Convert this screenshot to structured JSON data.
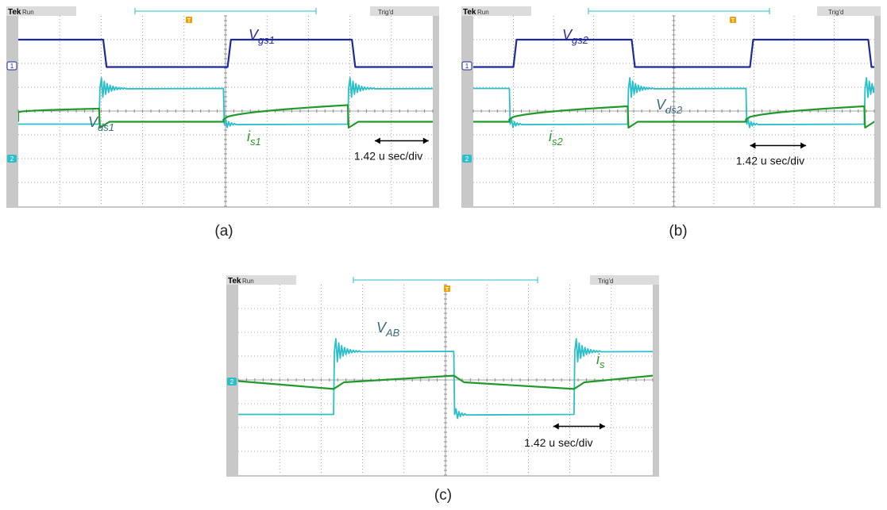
{
  "figure": {
    "captions": [
      "(a)",
      "(b)",
      "(c)"
    ]
  },
  "scope_ui": {
    "brand": "Tek",
    "run_label": "Run",
    "trig_label": "Trig'd",
    "trigger_marker": "T",
    "ch1_marker": "1",
    "ch2_marker": "2"
  },
  "colors": {
    "gate_trace": "#1c2a9c",
    "drain_trace": "#2bbfc9",
    "current_trace": "#1f9a2a",
    "dark_edge": "#0d5a55",
    "screen_bg": "#ffffff",
    "grid": "#8a8a8a",
    "frame": "#c8c8c8",
    "trigger": "#f0a000",
    "label_blue": "#2a2aa0",
    "label_teal": "#3a6a80",
    "label_green": "#2a9a2a"
  },
  "chart_data": [
    {
      "type": "line",
      "panel": "a",
      "timebase": "1.42  u sec/div",
      "divisions": {
        "x": 10,
        "y": 8
      },
      "x_unit": "div",
      "series": [
        {
          "name": "Vgs1",
          "label_main": "V",
          "label_sub": "gs1",
          "kind": "square",
          "high": 3.0,
          "low": 1.85,
          "edges": [
            [
              0,
              1
            ],
            [
              2.05,
              0
            ],
            [
              5.05,
              1
            ],
            [
              8.05,
              0
            ],
            [
              10.5,
              1
            ]
          ],
          "ring": 0
        },
        {
          "name": "Vds1",
          "label_main": "V",
          "label_sub": "ds1",
          "kind": "square",
          "high": 0.95,
          "low": -0.55,
          "edges": [
            [
              0,
              0
            ],
            [
              1.95,
              1
            ],
            [
              4.95,
              0
            ],
            [
              7.95,
              1
            ],
            [
              10.9,
              0
            ]
          ],
          "ring": 0.55
        },
        {
          "name": "is1",
          "label_main": "i",
          "label_sub": "s1",
          "kind": "current",
          "base": -0.45,
          "segments": [
            [
              0,
              1.95,
              0.4,
              0.55
            ],
            [
              4.95,
              7.95,
              0.1,
              0.7
            ],
            [
              10.9,
              12,
              0.1,
              0.45
            ]
          ]
        }
      ],
      "annotation": {
        "text": "1.42  u sec/div",
        "arrow_x": [
          8.6,
          9.9
        ],
        "arrow_y": -1.25,
        "text_x": 8.1,
        "text_y": -2.05
      }
    },
    {
      "type": "line",
      "panel": "b",
      "timebase": "1.42  u sec/div",
      "divisions": {
        "x": 10,
        "y": 8
      },
      "x_unit": "div",
      "series": [
        {
          "name": "Vgs2",
          "label_main": "V",
          "label_sub": "gs2",
          "kind": "square",
          "high": 3.0,
          "low": 1.85,
          "edges": [
            [
              0,
              0
            ],
            [
              1.0,
              1
            ],
            [
              3.95,
              0
            ],
            [
              6.9,
              1
            ],
            [
              9.85,
              0
            ]
          ],
          "ring": 0
        },
        {
          "name": "Vds2",
          "label_main": "V",
          "label_sub": "ds2",
          "kind": "square",
          "high": 0.95,
          "low": -0.55,
          "edges": [
            [
              0,
              1
            ],
            [
              0.9,
              0
            ],
            [
              3.85,
              1
            ],
            [
              6.8,
              0
            ],
            [
              9.75,
              1
            ]
          ],
          "ring": 0.55
        },
        {
          "name": "is2",
          "label_main": "i",
          "label_sub": "s2",
          "kind": "current",
          "base": -0.45,
          "segments": [
            [
              0.9,
              3.85,
              0.1,
              0.65
            ],
            [
              6.8,
              9.75,
              0.1,
              0.65
            ]
          ]
        }
      ],
      "annotation": {
        "text": "1.42  u sec/div",
        "arrow_x": [
          6.9,
          8.3
        ],
        "arrow_y": -1.45,
        "text_x": 6.55,
        "text_y": -2.25
      }
    },
    {
      "type": "line",
      "panel": "c",
      "timebase": "1.42  u sec/div",
      "divisions": {
        "x": 10,
        "y": 8
      },
      "x_unit": "div",
      "series": [
        {
          "name": "VAB",
          "label_main": "V",
          "label_sub": "AB",
          "kind": "square",
          "high": 1.2,
          "low": -1.45,
          "edges": [
            [
              0,
              0
            ],
            [
              2.3,
              1
            ],
            [
              5.2,
              0
            ],
            [
              8.1,
              1
            ]
          ],
          "ring": 0.65
        },
        {
          "name": "is",
          "label_main": "i",
          "label_sub": "s",
          "kind": "triangle",
          "points": [
            [
              0,
              -0.05
            ],
            [
              2.3,
              -0.38
            ],
            [
              2.55,
              -0.1
            ],
            [
              5.2,
              0.18
            ],
            [
              5.45,
              -0.1
            ],
            [
              8.1,
              -0.38
            ],
            [
              8.35,
              -0.1
            ],
            [
              10.0,
              0.18
            ]
          ]
        }
      ],
      "annotation": {
        "text": "1.42  u sec/div",
        "arrow_x": [
          7.6,
          8.85
        ],
        "arrow_y": -1.95,
        "text_x": 6.9,
        "text_y": -2.8
      }
    }
  ]
}
